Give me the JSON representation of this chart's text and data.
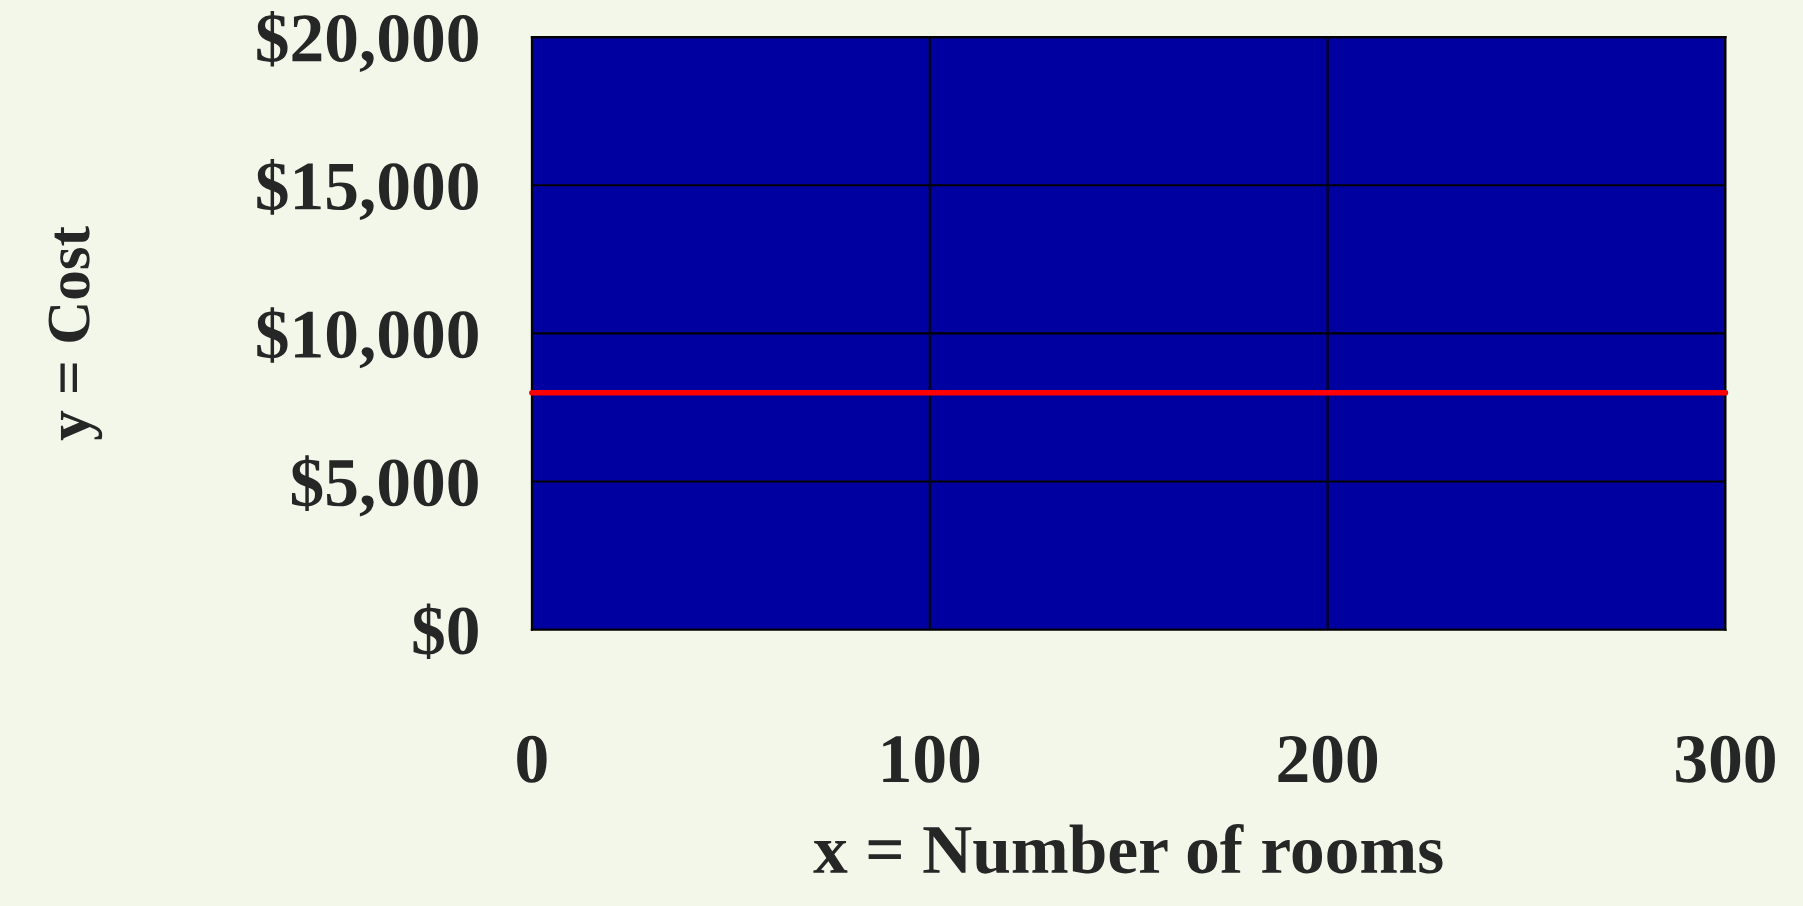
{
  "chart_data": {
    "type": "line",
    "xlabel": "x = Number of rooms",
    "ylabel": "y = Cost",
    "x": [
      0,
      300
    ],
    "series": [
      {
        "color": "#ff0000",
        "values": [
          8000,
          8000
        ]
      }
    ],
    "xlim": [
      0,
      300
    ],
    "xticks": [
      0,
      100,
      200,
      300
    ],
    "ylim": [
      0,
      20000
    ],
    "yticks": [
      {
        "value": 0,
        "label": "$0"
      },
      {
        "value": 5000,
        "label": "$5,000"
      },
      {
        "value": 10000,
        "label": "$10,000"
      },
      {
        "value": 15000,
        "label": "$15,000"
      },
      {
        "value": 20000,
        "label": "$20,000"
      }
    ],
    "grid": true,
    "marker": "none",
    "line_style": "solid"
  }
}
